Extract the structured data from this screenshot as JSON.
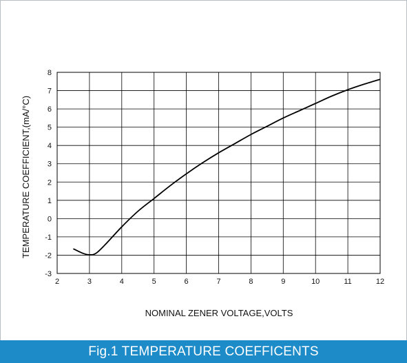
{
  "caption": "Fig.1 TEMPERATURE COEFFICENTS",
  "chart_data": {
    "type": "line",
    "title": "",
    "xlabel": "NOMINAL ZENER VOLTAGE,VOLTS",
    "ylabel": "TEMPERATURE COEFFICIENT,(mA/°C)",
    "xlim": [
      2,
      12
    ],
    "ylim": [
      -3,
      8
    ],
    "x_ticks": [
      "2",
      "3",
      "4",
      "5",
      "6",
      "7",
      "8",
      "9",
      "10",
      "11",
      "12"
    ],
    "y_ticks": [
      "-3",
      "-2",
      "-1",
      "0",
      "1",
      "2",
      "3",
      "4",
      "5",
      "6",
      "7",
      "8"
    ],
    "grid": true,
    "colors": {
      "line": "#000000",
      "grid": "#000000",
      "caption_bg": "#1e8bc9"
    },
    "series": [
      {
        "x": [
          2.5,
          2.8,
          3.0,
          3.2,
          3.5,
          4.0,
          4.5,
          5.0,
          5.5,
          6.0,
          6.5,
          7.0,
          7.5,
          8.0,
          8.5,
          9.0,
          9.5,
          10.0,
          10.5,
          11.0,
          11.5,
          12.0
        ],
        "y": [
          -1.65,
          -1.9,
          -1.98,
          -1.9,
          -1.4,
          -0.45,
          0.4,
          1.1,
          1.8,
          2.45,
          3.05,
          3.6,
          4.1,
          4.6,
          5.05,
          5.5,
          5.9,
          6.3,
          6.7,
          7.05,
          7.35,
          7.62
        ]
      }
    ]
  }
}
